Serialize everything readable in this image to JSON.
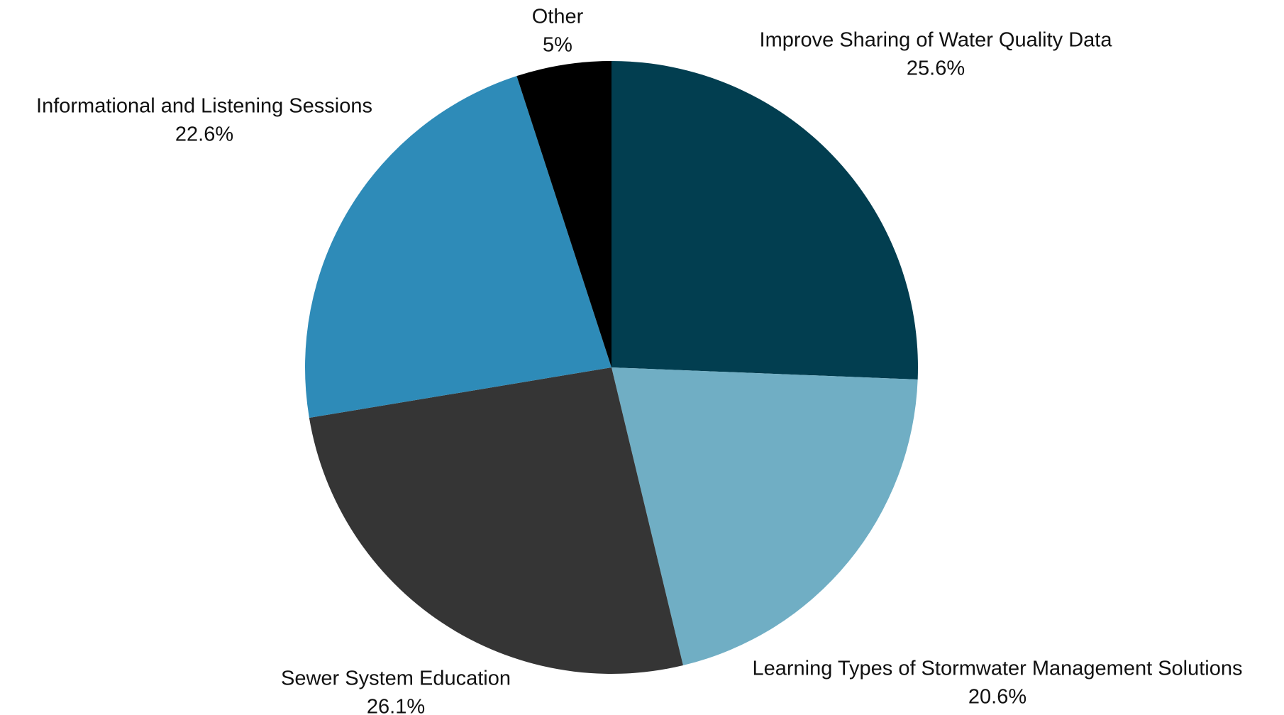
{
  "chart_data": {
    "type": "pie",
    "categories": [
      "Improve Sharing of Water Quality Data",
      "Learning Types of Stormwater Management Solutions",
      "Sewer System Education",
      "Informational and Listening Sessions",
      "Other"
    ],
    "values": [
      25.6,
      20.6,
      26.1,
      22.6,
      5
    ],
    "value_labels": [
      "25.6%",
      "20.6%",
      "26.1%",
      "22.6%",
      "5%"
    ],
    "colors": [
      "#023e50",
      "#70aec4",
      "#353535",
      "#2e8bb8",
      "#000000"
    ]
  }
}
